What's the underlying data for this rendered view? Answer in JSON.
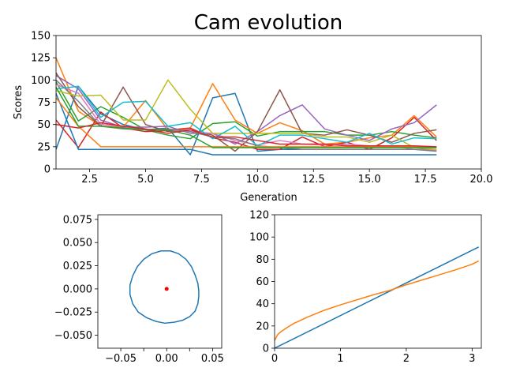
{
  "figure": {
    "title": "Cam evolution"
  },
  "chart_data": [
    {
      "type": "line",
      "title": "Cam evolution",
      "xlabel": "Generation",
      "ylabel": "Scores",
      "xlim": [
        1,
        20
      ],
      "ylim": [
        0,
        150
      ],
      "xticks": [
        2.5,
        5.0,
        7.5,
        10.0,
        12.5,
        15.0,
        17.5,
        20.0
      ],
      "xtick_labels": [
        "2.5",
        "5.0",
        "7.5",
        "10.0",
        "12.5",
        "15.0",
        "17.5",
        "20.0"
      ],
      "yticks": [
        0,
        25,
        50,
        75,
        100,
        125,
        150
      ],
      "ytick_labels": [
        "0",
        "25",
        "50",
        "75",
        "100",
        "125",
        "150"
      ],
      "x": [
        1,
        2,
        3,
        4,
        5,
        6,
        7,
        8,
        9,
        10,
        11,
        12,
        13,
        14,
        15,
        16,
        17,
        18
      ],
      "series": [
        {
          "color": "#1f77b4",
          "values": [
            22,
            93,
            62,
            50,
            44,
            46,
            16,
            80,
            85,
            20,
            22,
            22,
            22,
            22,
            22,
            22,
            22,
            22
          ]
        },
        {
          "color": "#ff7f0e",
          "values": [
            125,
            65,
            48,
            47,
            77,
            44,
            46,
            96,
            55,
            40,
            52,
            43,
            28,
            30,
            35,
            38,
            60,
            36
          ]
        },
        {
          "color": "#2ca02c",
          "values": [
            98,
            54,
            70,
            58,
            44,
            38,
            34,
            51,
            53,
            37,
            42,
            42,
            42,
            38,
            38,
            42,
            38,
            35
          ]
        },
        {
          "color": "#d62728",
          "values": [
            55,
            24,
            64,
            46,
            42,
            43,
            46,
            35,
            30,
            22,
            22,
            36,
            25,
            30,
            22,
            35,
            58,
            32
          ]
        },
        {
          "color": "#9467bd",
          "values": [
            105,
            90,
            55,
            47,
            47,
            48,
            40,
            40,
            28,
            42,
            60,
            72,
            45,
            38,
            32,
            45,
            52,
            72
          ]
        },
        {
          "color": "#8c564b",
          "values": [
            108,
            70,
            48,
            92,
            50,
            42,
            44,
            38,
            20,
            42,
            89,
            40,
            38,
            44,
            38,
            30,
            40,
            44
          ]
        },
        {
          "color": "#e377c2",
          "values": [
            95,
            85,
            50,
            48,
            44,
            44,
            42,
            40,
            32,
            27,
            32,
            28,
            27,
            28,
            26,
            26,
            22,
            21
          ]
        },
        {
          "color": "#7f7f7f",
          "values": [
            100,
            76,
            48,
            45,
            44,
            45,
            42,
            36,
            34,
            26,
            24,
            22,
            22,
            22,
            22,
            22,
            22,
            20
          ]
        },
        {
          "color": "#bcbd22",
          "values": [
            88,
            82,
            83,
            55,
            55,
            100,
            67,
            40,
            40,
            40,
            40,
            40,
            36,
            36,
            30,
            38,
            24,
            22
          ]
        },
        {
          "color": "#17becf",
          "values": [
            90,
            93,
            58,
            75,
            76,
            48,
            52,
            34,
            48,
            26,
            38,
            38,
            34,
            30,
            40,
            28,
            35,
            34
          ]
        },
        {
          "color": "#1f77b4",
          "values": [
            85,
            22,
            22,
            22,
            22,
            22,
            22,
            16,
            16,
            16,
            16,
            16,
            16,
            16,
            16,
            16,
            16,
            16
          ]
        },
        {
          "color": "#ff7f0e",
          "values": [
            80,
            48,
            25,
            25,
            25,
            25,
            25,
            25,
            25,
            25,
            25,
            25,
            25,
            25,
            25,
            25,
            25,
            25
          ]
        },
        {
          "color": "#2ca02c",
          "values": [
            92,
            48,
            48,
            46,
            44,
            44,
            38,
            24,
            24,
            24,
            24,
            24,
            24,
            24,
            24,
            24,
            24,
            24
          ]
        },
        {
          "color": "#d62728",
          "values": [
            50,
            46,
            52,
            48,
            45,
            40,
            44,
            36,
            36,
            32,
            28,
            28,
            28,
            26,
            26,
            26,
            26,
            25
          ]
        }
      ]
    },
    {
      "type": "line",
      "title": "",
      "xlabel": "",
      "ylabel": "",
      "xlim": [
        -0.075,
        0.06
      ],
      "ylim": [
        -0.064,
        0.08
      ],
      "xticks": [
        -0.05,
        -0.025,
        0.0,
        0.025,
        0.05
      ],
      "xtick_labels": [
        "−0.05",
        "",
        "0.00",
        "",
        "0.05"
      ],
      "yticks": [
        -0.05,
        -0.025,
        0.0,
        0.025,
        0.05,
        0.075
      ],
      "ytick_labels": [
        "−0.050",
        "−0.025",
        "0.000",
        "0.025",
        "0.050",
        "0.075"
      ],
      "cam_profile": {
        "color": "#1f77b4",
        "points": [
          [
            0.035,
            -0.002
          ],
          [
            0.034,
            0.006
          ],
          [
            0.031,
            0.015
          ],
          [
            0.027,
            0.024
          ],
          [
            0.021,
            0.032
          ],
          [
            0.013,
            0.038
          ],
          [
            0.004,
            0.041
          ],
          [
            -0.006,
            0.041
          ],
          [
            -0.016,
            0.038
          ],
          [
            -0.025,
            0.032
          ],
          [
            -0.032,
            0.024
          ],
          [
            -0.037,
            0.014
          ],
          [
            -0.04,
            0.004
          ],
          [
            -0.04,
            -0.006
          ],
          [
            -0.037,
            -0.016
          ],
          [
            -0.031,
            -0.025
          ],
          [
            -0.022,
            -0.031
          ],
          [
            -0.012,
            -0.035
          ],
          [
            -0.002,
            -0.037
          ],
          [
            0.008,
            -0.036
          ],
          [
            0.017,
            -0.034
          ],
          [
            0.025,
            -0.03
          ],
          [
            0.031,
            -0.024
          ],
          [
            0.034,
            -0.016
          ],
          [
            0.035,
            -0.008
          ],
          [
            0.035,
            -0.002
          ]
        ]
      },
      "center_point": {
        "x": 0.0,
        "y": 0.0,
        "color": "#ff0000"
      }
    },
    {
      "type": "line",
      "title": "",
      "xlabel": "",
      "ylabel": "",
      "xlim": [
        0,
        3.14
      ],
      "ylim": [
        0,
        120
      ],
      "xticks": [
        0,
        1,
        2,
        3
      ],
      "xtick_labels": [
        "0",
        "1",
        "2",
        "3"
      ],
      "yticks": [
        0,
        20,
        40,
        60,
        80,
        100,
        120
      ],
      "ytick_labels": [
        "0",
        "20",
        "40",
        "60",
        "80",
        "100",
        "120"
      ],
      "series": [
        {
          "color": "#1f77b4",
          "x": [
            0,
            3.1
          ],
          "values": [
            0,
            91
          ]
        },
        {
          "color": "#ff7f0e",
          "x": [
            0,
            0.05,
            0.1,
            0.2,
            0.3,
            0.5,
            0.75,
            1.0,
            1.25,
            1.5,
            1.75,
            2.0,
            2.25,
            2.5,
            2.75,
            3.0,
            3.1
          ],
          "values": [
            7,
            12.5,
            15,
            19,
            22.5,
            28,
            34,
            39,
            43.5,
            48,
            52,
            57,
            61.5,
            66,
            70.5,
            75.5,
            78.5
          ]
        }
      ]
    }
  ]
}
